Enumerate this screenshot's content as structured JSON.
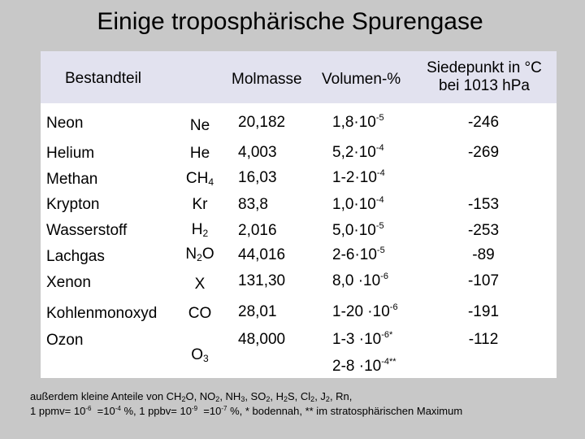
{
  "title": "Einige troposphärische Spurengase",
  "headers": {
    "name": "Bestandteil",
    "molmasse": "Molmasse",
    "volumen": "Volumen-%",
    "siedepunkt_line1": "Siedepunkt in °C",
    "siedepunkt_line2": "bei 1013 hPa"
  },
  "rows": [
    {
      "name": "Neon",
      "formula": [
        "Ne"
      ],
      "molmasse": "20,182",
      "volumen": [
        "1,8·10",
        "-5"
      ],
      "siedepunkt": "-246"
    },
    {
      "name": "Helium",
      "formula": [
        "He"
      ],
      "molmasse": "4,003",
      "volumen": [
        "5,2·10",
        "-4"
      ],
      "siedepunkt": "-269"
    },
    {
      "name": "Methan",
      "formula": [
        "CH",
        "4"
      ],
      "molmasse": "16,03",
      "volumen": [
        "1-2·10",
        "-4"
      ],
      "siedepunkt": ""
    },
    {
      "name": "Krypton",
      "formula": [
        "Kr"
      ],
      "molmasse": "83,8",
      "volumen": [
        "1,0·10",
        "-4"
      ],
      "siedepunkt": "-153"
    },
    {
      "name": "Wasserstoff",
      "formula": [
        "H",
        "2"
      ],
      "molmasse": "2,016",
      "volumen": [
        "5,0·10",
        "-5"
      ],
      "siedepunkt": "-253"
    },
    {
      "name": "Lachgas",
      "formula": [
        "N",
        "2",
        "O"
      ],
      "molmasse": "44,016",
      "volumen": [
        "2-6·10",
        "-5"
      ],
      "siedepunkt": "-89"
    },
    {
      "name": "Xenon",
      "formula": [
        "X"
      ],
      "molmasse": "131,30",
      "volumen": [
        "8,0 ·10",
        "-6"
      ],
      "siedepunkt": "-107"
    },
    {
      "name": "Kohlenmonoxyd",
      "formula": [
        "CO"
      ],
      "molmasse": "28,01",
      "volumen": [
        "1-20 ·10",
        "-6"
      ],
      "siedepunkt": "-191"
    },
    {
      "name": "Ozon",
      "formula": [
        "O",
        "3"
      ],
      "molmasse": "48,000",
      "volumen": [
        "1-3 ·10",
        "-6*"
      ],
      "volumen2": [
        "2-8 ·10",
        "-4**"
      ],
      "siedepunkt": "-112"
    }
  ],
  "footnote": {
    "line1": [
      "außerdem kleine Anteile von CH",
      "2",
      "O, NO",
      "2",
      ", NH",
      "3",
      ", SO",
      "2",
      ", H",
      "2",
      "S, Cl",
      "2",
      ", J",
      "2",
      ", Rn,"
    ],
    "line2": [
      "1 ppmv= 10",
      "-6",
      "  =10",
      "-4",
      " %, 1 ppbv= 10",
      "-9",
      "  =10",
      "-7",
      " %, * bodennah, ** im stratosphärischen Maximum"
    ]
  }
}
